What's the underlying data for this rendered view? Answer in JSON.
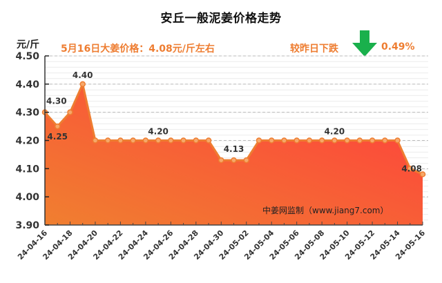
{
  "header": {
    "title": "安丘一般泥姜价格走势",
    "unit": "元/斤",
    "price_text": "5月16日大姜价格：4.08元/斤左右",
    "compare_text": "较昨日下跌",
    "change_pct": "0.49%",
    "arrow_icon": "down-arrow-icon",
    "arrow_color": "#1ab04c"
  },
  "watermark": "中姜网监制（www.jiang7.com）",
  "colors": {
    "line": "#ee7d31",
    "fill_top": "#ff4040",
    "fill_bottom": "#f07a30",
    "text_accent": "#ee7d31"
  },
  "chart_data": {
    "type": "area",
    "title": "安丘一般泥姜价格走势",
    "xlabel": "",
    "ylabel": "元/斤",
    "ylim": [
      3.9,
      4.5
    ],
    "yticks": [
      "4.50",
      "4.40",
      "4.30",
      "4.20",
      "4.10",
      "4.00",
      "3.90"
    ],
    "grid": true,
    "legend": null,
    "x": [
      "24-04-16",
      "24-04-17",
      "24-04-18",
      "24-04-19",
      "24-04-20",
      "24-04-21",
      "24-04-22",
      "24-04-23",
      "24-04-24",
      "24-04-25",
      "24-04-26",
      "24-04-27",
      "24-04-28",
      "24-04-29",
      "24-04-30",
      "24-05-01",
      "24-05-02",
      "24-05-03",
      "24-05-04",
      "24-05-05",
      "24-05-06",
      "24-05-07",
      "24-05-08",
      "24-05-09",
      "24-05-10",
      "24-05-11",
      "24-05-12",
      "24-05-13",
      "24-05-14",
      "24-05-15",
      "24-05-16"
    ],
    "xtick_labels": [
      "24-04-16",
      "24-04-18",
      "24-04-20",
      "24-04-22",
      "24-04-24",
      "24-04-26",
      "24-04-28",
      "24-04-30",
      "24-05-02",
      "24-05-04",
      "24-05-06",
      "24-05-08",
      "24-05-10",
      "24-05-12",
      "24-05-14",
      "24-05-16"
    ],
    "values": [
      4.3,
      4.25,
      4.3,
      4.4,
      4.2,
      4.2,
      4.2,
      4.2,
      4.2,
      4.2,
      4.2,
      4.2,
      4.2,
      4.2,
      4.13,
      4.13,
      4.13,
      4.2,
      4.2,
      4.2,
      4.2,
      4.2,
      4.2,
      4.2,
      4.2,
      4.2,
      4.2,
      4.2,
      4.2,
      4.1,
      4.08
    ],
    "annotations": [
      {
        "index": 0,
        "label": "4.30"
      },
      {
        "index": 1,
        "label": "4.25"
      },
      {
        "index": 3,
        "label": "4.40"
      },
      {
        "index": 9,
        "label": "4.20"
      },
      {
        "index": 15,
        "label": "4.13"
      },
      {
        "index": 23,
        "label": "4.20"
      },
      {
        "index": 30,
        "label": "4.08"
      }
    ]
  }
}
